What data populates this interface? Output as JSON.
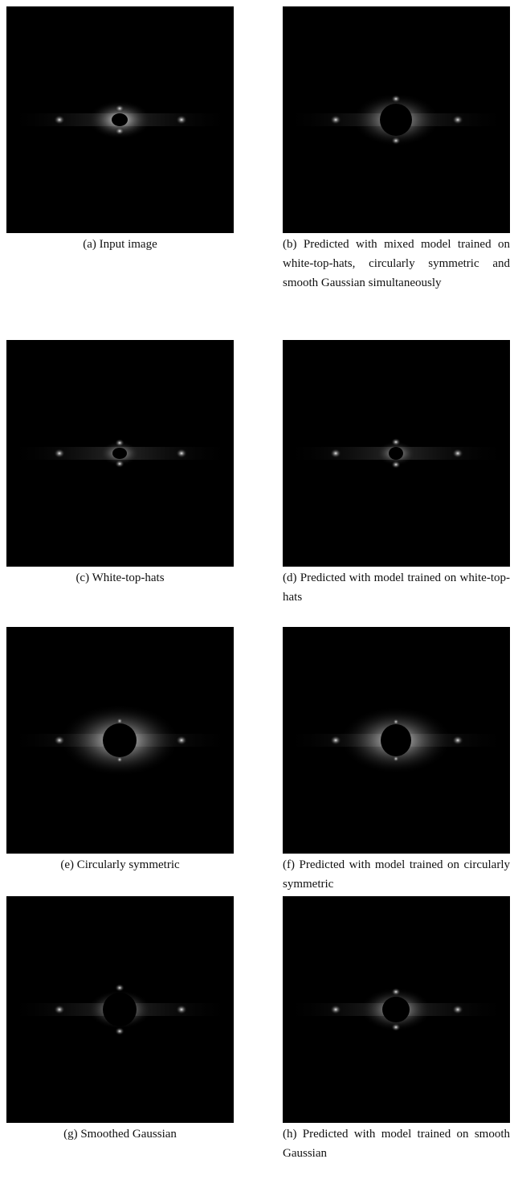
{
  "panels": [
    {
      "label": "(a) Input image"
    },
    {
      "label": "(b) Predicted with mixed model trained on white-top-hats, circularly symmetric and smooth Gaussian simultaneously"
    },
    {
      "label": "(c) White-top-hats"
    },
    {
      "label": "(d) Predicted with model trained on white-top-hats"
    },
    {
      "label": "(e) Circularly symmetric"
    },
    {
      "label": "(f) Predicted with model trained on circularly symmetric"
    },
    {
      "label": "(g) Smoothed Gaussian"
    },
    {
      "label": "(h) Predicted with model trained on smooth Gaussian"
    }
  ]
}
